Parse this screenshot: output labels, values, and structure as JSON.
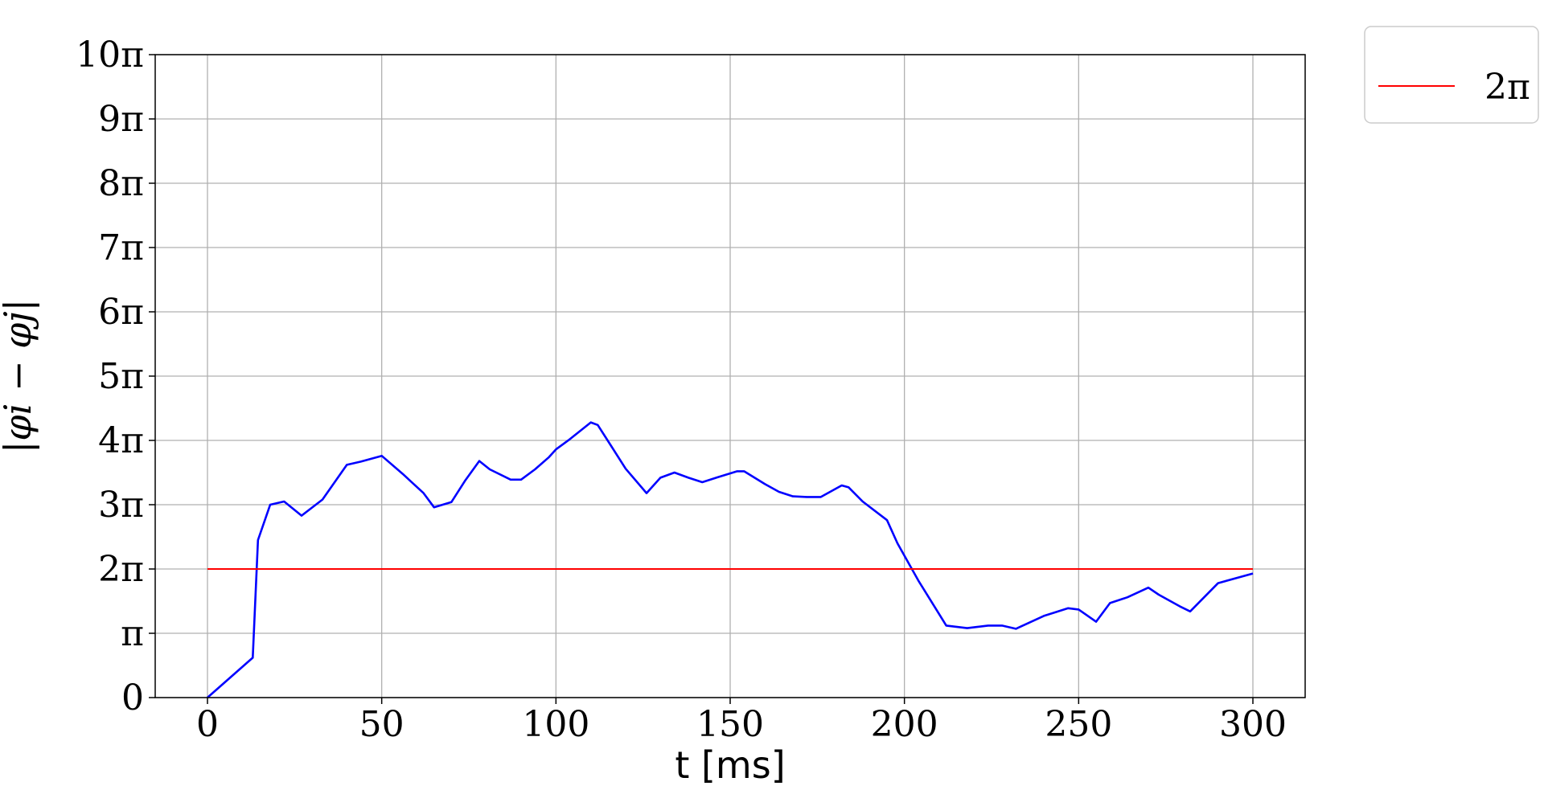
{
  "chart_data": {
    "type": "line",
    "xlabel": "t [ms]",
    "ylabel": "|φ_i − φ_j|",
    "ylabel_display": "|φi − φj|",
    "xlim": [
      -15,
      315
    ],
    "ylim": [
      0,
      10
    ],
    "y_unit": "π",
    "grid": true,
    "legend_position": "outside top-right",
    "x_ticks": [
      0,
      50,
      100,
      150,
      200,
      250,
      300
    ],
    "x_tick_labels": [
      "0",
      "50",
      "100",
      "150",
      "200",
      "250",
      "300"
    ],
    "y_ticks": [
      0,
      1,
      2,
      3,
      4,
      5,
      6,
      7,
      8,
      9,
      10
    ],
    "y_tick_labels": [
      "0",
      "π",
      "2π",
      "3π",
      "4π",
      "5π",
      "6π",
      "7π",
      "8π",
      "9π",
      "10π"
    ],
    "series": [
      {
        "color": "#0000ff",
        "x": [
          0,
          13,
          14.5,
          18,
          22,
          27,
          33,
          40,
          44,
          50,
          56,
          62,
          65,
          70,
          74,
          78,
          81,
          87,
          90,
          94,
          98,
          100,
          104,
          110,
          112,
          116,
          120,
          126,
          130,
          134,
          138,
          142,
          146,
          152,
          154,
          160,
          164,
          168,
          172,
          176,
          182,
          184,
          188,
          195,
          198,
          204,
          212,
          218,
          224,
          228,
          232,
          240,
          247,
          250,
          255,
          259,
          264,
          270,
          273,
          279,
          282,
          290,
          300
        ],
        "y": [
          0,
          0.62,
          2.45,
          3.0,
          3.05,
          2.83,
          3.08,
          3.62,
          3.67,
          3.76,
          3.48,
          3.18,
          2.96,
          3.04,
          3.38,
          3.68,
          3.55,
          3.39,
          3.39,
          3.55,
          3.74,
          3.86,
          4.02,
          4.28,
          4.24,
          3.9,
          3.56,
          3.18,
          3.42,
          3.5,
          3.42,
          3.35,
          3.42,
          3.52,
          3.52,
          3.32,
          3.2,
          3.13,
          3.12,
          3.12,
          3.3,
          3.27,
          3.05,
          2.76,
          2.4,
          1.82,
          1.12,
          1.08,
          1.12,
          1.12,
          1.07,
          1.27,
          1.39,
          1.37,
          1.18,
          1.47,
          1.56,
          1.71,
          1.6,
          1.42,
          1.34,
          1.78,
          1.93
        ]
      },
      {
        "name": "2π",
        "color": "#ff0000",
        "x": [
          0,
          300
        ],
        "y": [
          2,
          2
        ]
      }
    ]
  }
}
